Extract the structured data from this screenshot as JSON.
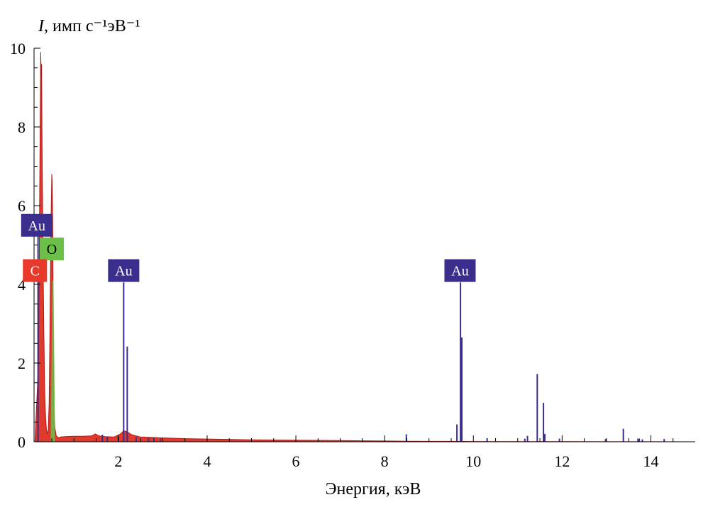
{
  "chart_data": {
    "type": "area",
    "ylabel_italic": "I",
    "ylabel_rest": ", имп с⁻¹эВ⁻¹",
    "xlabel": "Энергия, кэВ",
    "xlim": [
      0.1,
      15
    ],
    "ylim": [
      0,
      10
    ],
    "x_ticks": [
      2,
      4,
      6,
      8,
      10,
      12,
      14
    ],
    "y_ticks": [
      0,
      2,
      4,
      6,
      8,
      10
    ],
    "grid": false,
    "colors": {
      "spectrum": "#e03a2c",
      "spectrum_edge": "#b01818",
      "au_lines": "#3a2e8c",
      "au_badge": "#3a2e8c",
      "o_badge": "#6cc04a",
      "c_badge": "#e8392a"
    },
    "spectrum": {
      "x": [
        0.12,
        0.2,
        0.24,
        0.25,
        0.26,
        0.27,
        0.28,
        0.3,
        0.32,
        0.34,
        0.36,
        0.38,
        0.4,
        0.42,
        0.44,
        0.46,
        0.48,
        0.5,
        0.51,
        0.52,
        0.53,
        0.54,
        0.55,
        0.57,
        0.6,
        0.65,
        0.7,
        0.8,
        1.0,
        1.2,
        1.4,
        1.48,
        1.56,
        1.7,
        1.9,
        2.05,
        2.12,
        2.2,
        2.3,
        2.5,
        3.0,
        3.5,
        4.0,
        5.0,
        6.0,
        7.0,
        8.0,
        8.5,
        9.0,
        9.5,
        10.0,
        10.5,
        11.0,
        12.0,
        13.0,
        14.0,
        15.0
      ],
      "y": [
        0.0,
        2.0,
        8.5,
        9.9,
        9.3,
        9.6,
        7.5,
        5.0,
        2.8,
        1.3,
        0.6,
        0.3,
        0.2,
        0.3,
        1.0,
        3.0,
        5.5,
        6.8,
        6.6,
        5.5,
        3.5,
        1.8,
        0.8,
        0.35,
        0.15,
        0.1,
        0.12,
        0.13,
        0.14,
        0.14,
        0.15,
        0.2,
        0.15,
        0.13,
        0.12,
        0.2,
        0.28,
        0.25,
        0.18,
        0.12,
        0.1,
        0.08,
        0.07,
        0.05,
        0.04,
        0.03,
        0.02,
        0.015,
        0.01,
        0.01,
        0.008,
        0.005,
        0.004,
        0.003,
        0.002,
        0.001,
        0.0
      ]
    },
    "o_peak": {
      "x": 0.525,
      "y": 4.1,
      "width": 0.05
    },
    "au_lines": [
      {
        "x": 0.19,
        "y": 5.3
      },
      {
        "x": 1.64,
        "y": 0.18
      },
      {
        "x": 1.75,
        "y": 0.12
      },
      {
        "x": 2.0,
        "y": 0.13
      },
      {
        "x": 2.12,
        "y": 4.05
      },
      {
        "x": 2.2,
        "y": 2.42
      },
      {
        "x": 2.4,
        "y": 0.12
      },
      {
        "x": 2.68,
        "y": 0.1
      },
      {
        "x": 2.8,
        "y": 0.1
      },
      {
        "x": 2.95,
        "y": 0.08
      },
      {
        "x": 8.49,
        "y": 0.19
      },
      {
        "x": 9.63,
        "y": 0.44
      },
      {
        "x": 9.71,
        "y": 4.05
      },
      {
        "x": 9.74,
        "y": 2.65
      },
      {
        "x": 10.31,
        "y": 0.09
      },
      {
        "x": 11.16,
        "y": 0.08
      },
      {
        "x": 11.22,
        "y": 0.15
      },
      {
        "x": 11.44,
        "y": 1.72
      },
      {
        "x": 11.58,
        "y": 0.99
      },
      {
        "x": 11.61,
        "y": 0.2
      },
      {
        "x": 11.94,
        "y": 0.08
      },
      {
        "x": 12.98,
        "y": 0.07
      },
      {
        "x": 13.38,
        "y": 0.33
      },
      {
        "x": 13.71,
        "y": 0.08
      },
      {
        "x": 13.74,
        "y": 0.08
      },
      {
        "x": 13.81,
        "y": 0.06
      },
      {
        "x": 14.3,
        "y": 0.07
      }
    ],
    "annotations": [
      {
        "text": "Au",
        "x": 0.16,
        "y": 5.5,
        "color": "#3a2e8c",
        "text_color": "#ffffff"
      },
      {
        "text": "O",
        "x": 0.5,
        "y": 4.9,
        "color": "#6cc04a",
        "text_color": "#000000"
      },
      {
        "text": "C",
        "x": 0.12,
        "y": 4.35,
        "color": "#e8392a",
        "text_color": "#ffffff"
      },
      {
        "text": "Au",
        "x": 2.12,
        "y": 4.35,
        "color": "#3a2e8c",
        "text_color": "#ffffff"
      },
      {
        "text": "Au",
        "x": 9.7,
        "y": 4.35,
        "color": "#3a2e8c",
        "text_color": "#ffffff"
      }
    ]
  }
}
